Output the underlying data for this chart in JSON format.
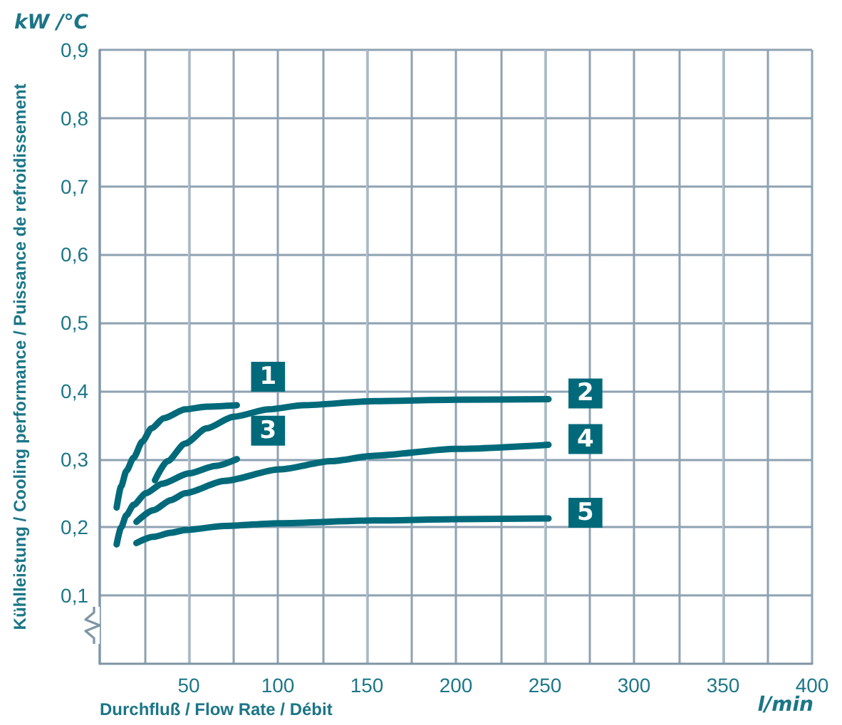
{
  "chart_data": {
    "type": "line",
    "ylabel": "Kühlleistung / Cooling performance / Puissance de refroidissement",
    "xlabel": "Durchfluß / Flow Rate / Débit",
    "annotations": [
      "kW /°C",
      "l/min"
    ],
    "xlim": [
      0,
      400
    ],
    "xticks": [
      {
        "value": 0,
        "label": null
      },
      {
        "value": 25,
        "label": null
      },
      50,
      {
        "value": 75,
        "label": null
      },
      100,
      {
        "value": 125,
        "label": null
      },
      150,
      {
        "value": 175,
        "label": null
      },
      200,
      {
        "value": 225,
        "label": null
      },
      250,
      {
        "value": 275,
        "label": null
      },
      300,
      {
        "value": 325,
        "label": null
      },
      350,
      {
        "value": 375,
        "label": null
      },
      400
    ],
    "ylim": [
      0,
      0.9
    ],
    "yticks": [
      {
        "value": 0.1,
        "label": "0,1"
      },
      {
        "value": 0.2,
        "label": "0,2"
      },
      {
        "value": 0.3,
        "label": "0,3"
      },
      {
        "value": 0.4,
        "label": "0,4"
      },
      {
        "value": 0.5,
        "label": "0,5"
      },
      {
        "value": 0.6,
        "label": "0,6"
      },
      {
        "value": 0.7,
        "label": "0,7"
      },
      {
        "value": 0.8,
        "label": "0,8"
      },
      {
        "value": 0.9,
        "label": "0,9"
      }
    ],
    "grid": true,
    "marker": "none",
    "line_style": "solid",
    "series": [
      {
        "name": "1",
        "color": "#006a7a",
        "x": [
          9.5,
          12,
          15,
          19,
          24,
          29,
          36,
          48,
          60,
          77
        ],
        "values": [
          0.229,
          0.26,
          0.283,
          0.302,
          0.326,
          0.345,
          0.36,
          0.373,
          0.377,
          0.379
        ]
      },
      {
        "name": "2",
        "color": "#006a7a",
        "x": [
          31,
          38,
          48,
          60,
          75,
          95,
          114,
          154,
          200,
          252
        ],
        "values": [
          0.269,
          0.297,
          0.323,
          0.345,
          0.362,
          0.373,
          0.379,
          0.385,
          0.387,
          0.388
        ]
      },
      {
        "name": "3",
        "color": "#006a7a",
        "x": [
          9.5,
          12,
          15,
          19,
          26,
          35,
          50,
          65,
          77
        ],
        "values": [
          0.175,
          0.2,
          0.218,
          0.233,
          0.25,
          0.264,
          0.279,
          0.29,
          0.3
        ]
      },
      {
        "name": "4",
        "color": "#006a7a",
        "x": [
          20.6,
          30,
          40,
          48,
          70,
          101,
          130,
          154,
          200,
          252
        ],
        "values": [
          0.208,
          0.225,
          0.24,
          0.25,
          0.268,
          0.285,
          0.297,
          0.305,
          0.315,
          0.321
        ]
      },
      {
        "name": "5",
        "color": "#006a7a",
        "x": [
          20.6,
          30,
          40,
          48,
          70,
          101,
          154,
          200,
          252
        ],
        "values": [
          0.177,
          0.186,
          0.192,
          0.196,
          0.202,
          0.206,
          0.21,
          0.212,
          0.213
        ]
      }
    ]
  }
}
